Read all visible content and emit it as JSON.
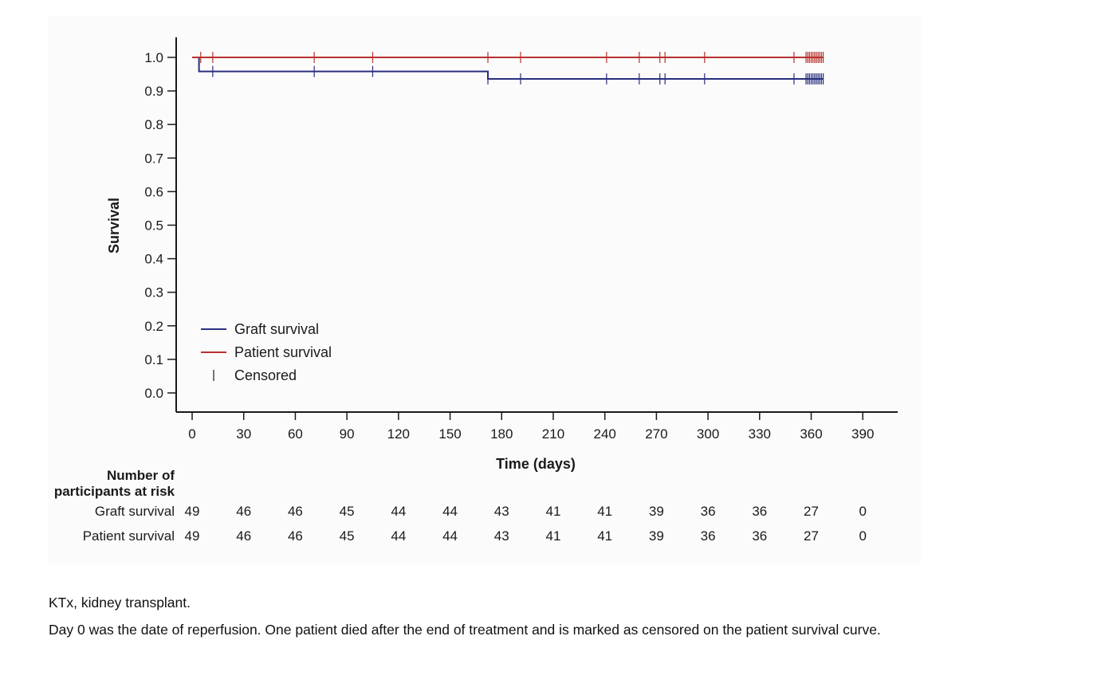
{
  "chart_data": {
    "type": "line",
    "title": "",
    "xlabel": "Time (days)",
    "ylabel": "Survival",
    "xlim": [
      -9,
      410
    ],
    "ylim": [
      -0.05,
      1.06
    ],
    "xticks": [
      0,
      30,
      60,
      90,
      120,
      150,
      180,
      210,
      240,
      270,
      300,
      330,
      360,
      390
    ],
    "yticks": [
      0.0,
      0.1,
      0.2,
      0.3,
      0.4,
      0.5,
      0.6,
      0.7,
      0.8,
      0.9,
      1.0
    ],
    "ytick_labels": [
      "0.0",
      "0.1",
      "0.2",
      "0.3",
      "0.4",
      "0.5",
      "0.6",
      "0.7",
      "0.8",
      "0.9",
      "1.0"
    ],
    "grid": false,
    "legend_position": "bottom-left",
    "series": [
      {
        "name": "Graft survival",
        "color": "#2b2f7f",
        "steps": [
          [
            0,
            1.0
          ],
          [
            4,
            0.958
          ],
          [
            172,
            0.936
          ],
          [
            367,
            0.936
          ]
        ],
        "censored": [
          12,
          71,
          105,
          172,
          191,
          241,
          260,
          272,
          275,
          298,
          350,
          357,
          358,
          359,
          360,
          361,
          362,
          363,
          364,
          365,
          366,
          367
        ]
      },
      {
        "name": "Patient survival",
        "color": "#b8322f",
        "steps": [
          [
            0,
            1.0
          ],
          [
            367,
            1.0
          ]
        ],
        "censored": [
          5,
          12,
          71,
          105,
          172,
          191,
          241,
          260,
          272,
          275,
          298,
          350,
          357,
          358,
          359,
          360,
          361,
          362,
          363,
          364,
          365,
          366,
          367
        ]
      }
    ],
    "legend": {
      "items": [
        {
          "label": "Graft survival",
          "kind": "line",
          "color": "#2b2f7f"
        },
        {
          "label": "Patient survival",
          "kind": "line",
          "color": "#b8322f"
        },
        {
          "label": "Censored",
          "kind": "tick",
          "color": "#1a1a1a"
        }
      ]
    },
    "risk_table": {
      "header_line1": "Number of",
      "header_line2": "participants at risk",
      "timepoints": [
        0,
        30,
        60,
        90,
        120,
        150,
        180,
        210,
        240,
        270,
        300,
        330,
        360,
        390
      ],
      "rows": [
        {
          "label": "Graft survival",
          "values": [
            49,
            46,
            46,
            45,
            44,
            44,
            43,
            41,
            41,
            39,
            36,
            36,
            27,
            0
          ]
        },
        {
          "label": "Patient survival",
          "values": [
            49,
            46,
            46,
            45,
            44,
            44,
            43,
            41,
            41,
            39,
            36,
            36,
            27,
            0
          ]
        }
      ]
    }
  },
  "footnotes": {
    "line1": "KTx, kidney transplant.",
    "line2": "Day 0 was the date of reperfusion. One patient died after the end of treatment and is marked as censored on the patient survival curve."
  }
}
